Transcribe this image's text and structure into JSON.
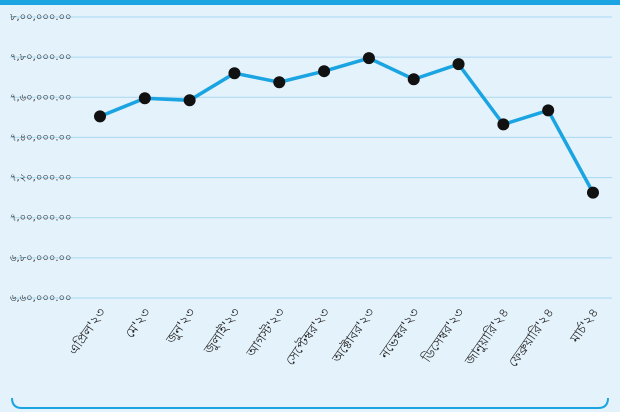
{
  "chart_data": {
    "type": "line",
    "categories": [
      "এপ্রিল'২৩",
      "মে'২৩",
      "জুন'২৩",
      "জুলাই'২৩",
      "আগস্ট'২৩",
      "সেপ্টেম্বর'২৩",
      "অক্টোবর'২৩",
      "নভেম্বর'২৩",
      "ডিসেম্বর'২৩",
      "জানুয়ারি'২৪",
      "ফেব্রুয়ারি'২৪",
      "মার্চ'২৪"
    ],
    "series": [
      {
        "color": "#1ba4e2",
        "values": [
          750500,
          759500,
          758500,
          772000,
          767500,
          773000,
          779500,
          769000,
          776500,
          746500,
          753500,
          712500
        ]
      }
    ],
    "ylim": [
      660000,
      800000
    ],
    "yticks": [
      {
        "value": 660000,
        "label": "৬,৬০,০০০.০০"
      },
      {
        "value": 680000,
        "label": "৬,৮০,০০০.০০"
      },
      {
        "value": 700000,
        "label": "৭,০০,০০০.০০"
      },
      {
        "value": 720000,
        "label": "৭,২০,০০০.০০"
      },
      {
        "value": 740000,
        "label": "৭,৪০,০০০.০০"
      },
      {
        "value": 760000,
        "label": "৭,৬০,০০০.০০"
      },
      {
        "value": 780000,
        "label": "৭,৮০,০০০.০০"
      },
      {
        "value": 800000,
        "label": "৮,০০,০০০.০০"
      }
    ],
    "grid": true,
    "marker_color": "#111111"
  }
}
